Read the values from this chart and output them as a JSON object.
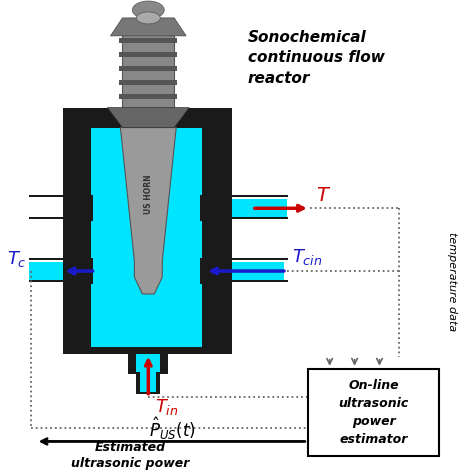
{
  "title": "Sonochemical\ncontinuous flow\nreactor",
  "bg_color": "#ffffff",
  "cyan_color": "#00e5ff",
  "black_color": "#1a1a1a",
  "gray_color": "#888888",
  "red_color": "#cc0000",
  "blue_color": "#1a1acc",
  "dashed_color": "#666666",
  "box_text": "On-line\nultrasonic\npower\nestimator",
  "label_temp": "temperature data"
}
